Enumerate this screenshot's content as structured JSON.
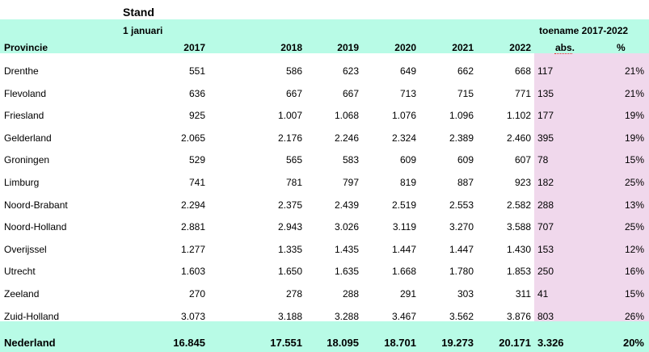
{
  "title": "Stand",
  "subheader_left": "1 januari",
  "subheader_right": "toename 2017-2022",
  "headers": {
    "provincie": "Provincie",
    "years": [
      "2017",
      "2018",
      "2019",
      "2020",
      "2021",
      "2022"
    ],
    "abs": "abs.",
    "pct": "%"
  },
  "rows": [
    {
      "name": "Drenthe",
      "values": [
        "551",
        "586",
        "623",
        "649",
        "662",
        "668"
      ],
      "abs": "117",
      "pct": "21%"
    },
    {
      "name": "Flevoland",
      "values": [
        "636",
        "667",
        "667",
        "713",
        "715",
        "771"
      ],
      "abs": "135",
      "pct": "21%"
    },
    {
      "name": "Friesland",
      "values": [
        "925",
        "1.007",
        "1.068",
        "1.076",
        "1.096",
        "1.102"
      ],
      "abs": "177",
      "pct": "19%"
    },
    {
      "name": "Gelderland",
      "values": [
        "2.065",
        "2.176",
        "2.246",
        "2.324",
        "2.389",
        "2.460"
      ],
      "abs": "395",
      "pct": "19%"
    },
    {
      "name": "Groningen",
      "values": [
        "529",
        "565",
        "583",
        "609",
        "609",
        "607"
      ],
      "abs": "78",
      "pct": "15%"
    },
    {
      "name": "Limburg",
      "values": [
        "741",
        "781",
        "797",
        "819",
        "887",
        "923"
      ],
      "abs": "182",
      "pct": "25%"
    },
    {
      "name": "Noord-Brabant",
      "values": [
        "2.294",
        "2.375",
        "2.439",
        "2.519",
        "2.553",
        "2.582"
      ],
      "abs": "288",
      "pct": "13%"
    },
    {
      "name": "Noord-Holland",
      "values": [
        "2.881",
        "2.943",
        "3.026",
        "3.119",
        "3.270",
        "3.588"
      ],
      "abs": "707",
      "pct": "25%"
    },
    {
      "name": "Overijssel",
      "values": [
        "1.277",
        "1.335",
        "1.435",
        "1.447",
        "1.447",
        "1.430"
      ],
      "abs": "153",
      "pct": "12%"
    },
    {
      "name": "Utrecht",
      "values": [
        "1.603",
        "1.650",
        "1.635",
        "1.668",
        "1.780",
        "1.853"
      ],
      "abs": "250",
      "pct": "16%"
    },
    {
      "name": "Zeeland",
      "values": [
        "270",
        "278",
        "288",
        "291",
        "303",
        "311"
      ],
      "abs": "41",
      "pct": "15%"
    },
    {
      "name": "Zuid-Holland",
      "values": [
        "3.073",
        "3.188",
        "3.288",
        "3.467",
        "3.562",
        "3.876"
      ],
      "abs": "803",
      "pct": "26%"
    }
  ],
  "total": {
    "name": "Nederland",
    "values": [
      "16.845",
      "17.551",
      "18.095",
      "18.701",
      "19.273",
      "20.171"
    ],
    "abs": "3.326",
    "pct": "20%"
  },
  "colors": {
    "header_band": "#b8fbe6",
    "change_columns": "#f0d8ec"
  }
}
